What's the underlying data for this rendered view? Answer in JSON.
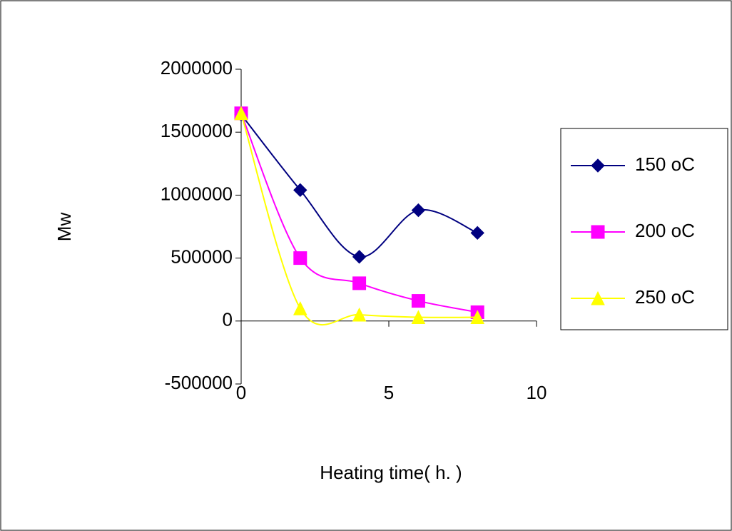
{
  "chart_data": {
    "type": "line",
    "x_label": "Heating time( h. )",
    "y_label": "Mw",
    "x": [
      0,
      2,
      4,
      6,
      8
    ],
    "series": [
      {
        "name": "150  oC",
        "color": "#000080",
        "marker": "diamond",
        "values": [
          1640000,
          1040000,
          510000,
          880000,
          700000
        ]
      },
      {
        "name": "200  oC",
        "color": "#ff00ff",
        "marker": "square",
        "values": [
          1650000,
          500000,
          300000,
          160000,
          70000
        ]
      },
      {
        "name": "250  oC",
        "color": "#ffff00",
        "marker": "triangle",
        "values": [
          1650000,
          100000,
          50000,
          30000,
          30000
        ]
      }
    ],
    "xlim": [
      0,
      10
    ],
    "xticks": [
      0,
      5,
      10
    ],
    "ylim": [
      -500000,
      2000000
    ],
    "yticks": [
      -500000,
      0,
      500000,
      1000000,
      1500000,
      2000000
    ],
    "smooth": true,
    "legend": "right"
  }
}
